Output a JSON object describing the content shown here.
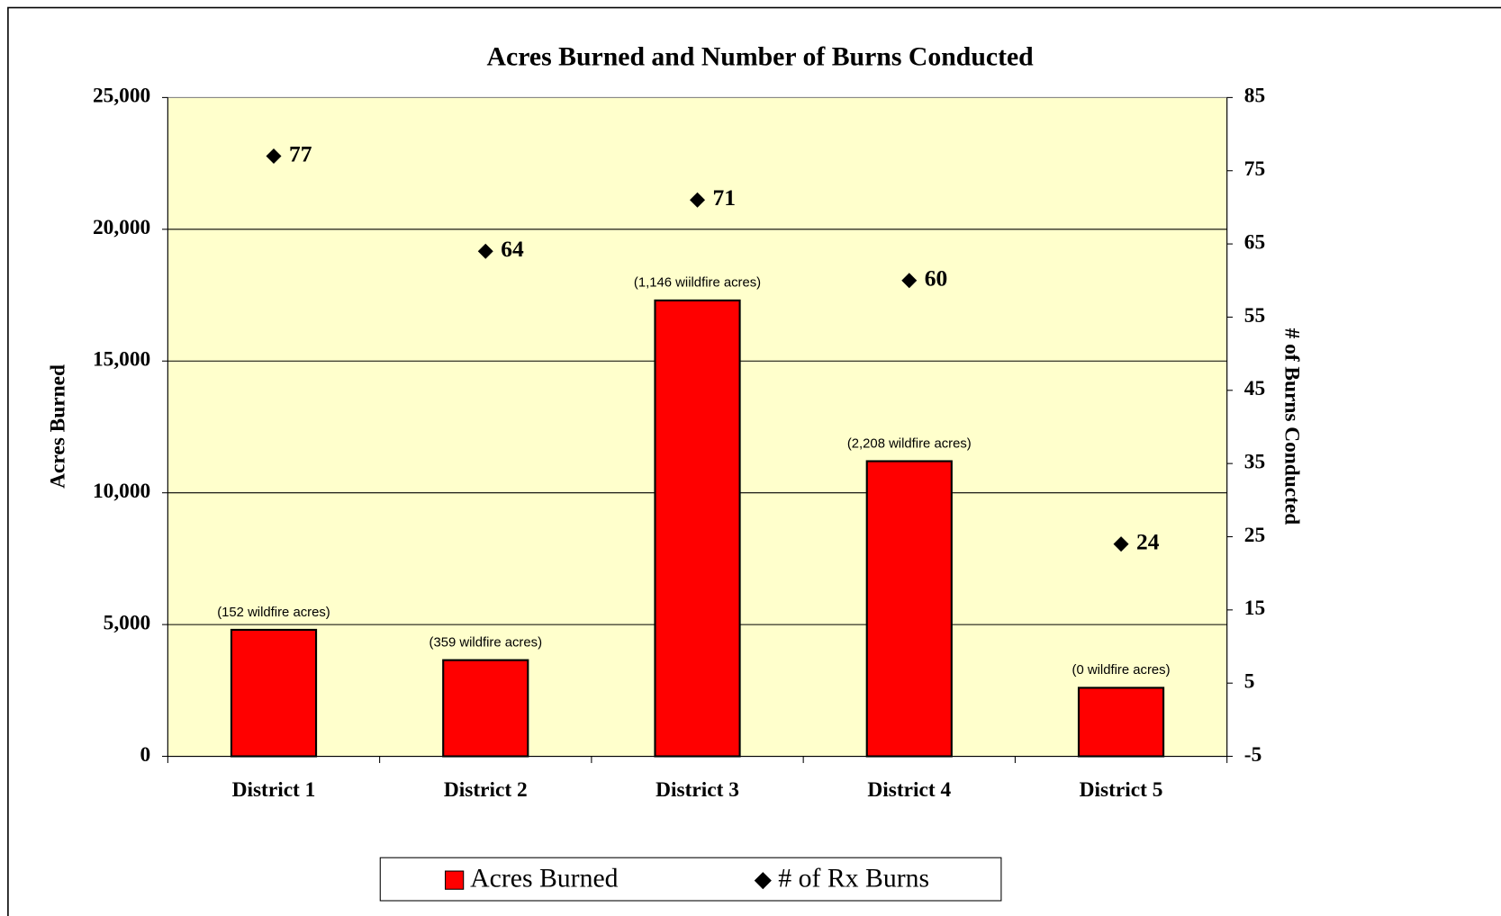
{
  "chart_data": {
    "type": "bar",
    "title": "Acres Burned and Number of Burns Conducted",
    "y_label": "Acres Burned",
    "y2_label": "# of Burns Conducted",
    "categories": [
      "District 1",
      "District 2",
      "District 3",
      "District 4",
      "District 5"
    ],
    "series": [
      {
        "name": "Acres Burned",
        "color": "#ff0000",
        "values": [
          4800,
          3650,
          17300,
          11200,
          2600
        ]
      },
      {
        "name": "# of Rx Burns",
        "color": "#000000",
        "axis": "y2",
        "values": [
          77,
          64,
          71,
          60,
          24
        ]
      }
    ],
    "annotations": [
      "(152 wildfire acres)",
      "(359 wildfire acres)",
      "(1,146 wiildfire acres)",
      "(2,208 wildfire acres)",
      "(0 wildfire acres)"
    ],
    "ylim": [
      0,
      25000
    ],
    "yticks": [
      0,
      {
        "value": 5000,
        "label": "5,000"
      },
      {
        "value": 10000,
        "label": "10,000"
      },
      {
        "value": 15000,
        "label": "15,000"
      },
      {
        "value": 20000,
        "label": "20,000"
      },
      {
        "value": 25000,
        "label": "25,000"
      }
    ],
    "y2lim": [
      -5,
      85
    ],
    "y2ticks": [
      -5,
      5,
      15,
      25,
      35,
      45,
      55,
      65,
      75,
      85
    ],
    "grid": true,
    "plot_background": "#ffffcc",
    "legend": "bottom"
  }
}
